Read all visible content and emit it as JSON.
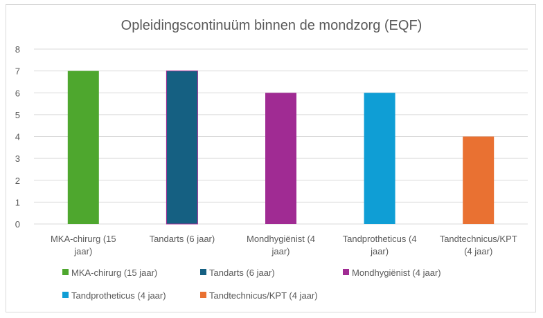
{
  "chart_data": {
    "type": "bar",
    "title": "Opleidingscontinuüm binnen de mondzorg (EQF)",
    "xlabel": "",
    "ylabel": "",
    "ylim": [
      0,
      8
    ],
    "yticks": [
      "0",
      "1",
      "2",
      "3",
      "4",
      "5",
      "6",
      "7",
      "8"
    ],
    "grid": true,
    "legend_position": "bottom",
    "categories": [
      [
        "MKA-chirurg (15",
        "jaar)"
      ],
      [
        "Tandarts (6 jaar)"
      ],
      [
        "Mondhygiënist (4",
        "jaar)"
      ],
      [
        "Tandprotheticus (4",
        "jaar)"
      ],
      [
        "Tandtechnicus/KPT",
        "(4 jaar)"
      ]
    ],
    "series": [
      {
        "name": "MKA-chirurg (15 jaar)",
        "value": 7,
        "color": "#4ea72e"
      },
      {
        "name": "Tandarts (6 jaar)",
        "value": 7,
        "color": "#156082"
      },
      {
        "name": "Mondhygiënist (4 jaar)",
        "value": 6,
        "color": "#a02b93"
      },
      {
        "name": "Tandprotheticus (4 jaar)",
        "value": 6,
        "color": "#0f9ed5"
      },
      {
        "name": "Tandtechnicus/KPT (4 jaar)",
        "value": 4,
        "color": "#e97132"
      }
    ],
    "colors": {
      "grid": "#d9d9d9",
      "text": "#595959",
      "tandarts_outline": "#a02b93"
    }
  }
}
